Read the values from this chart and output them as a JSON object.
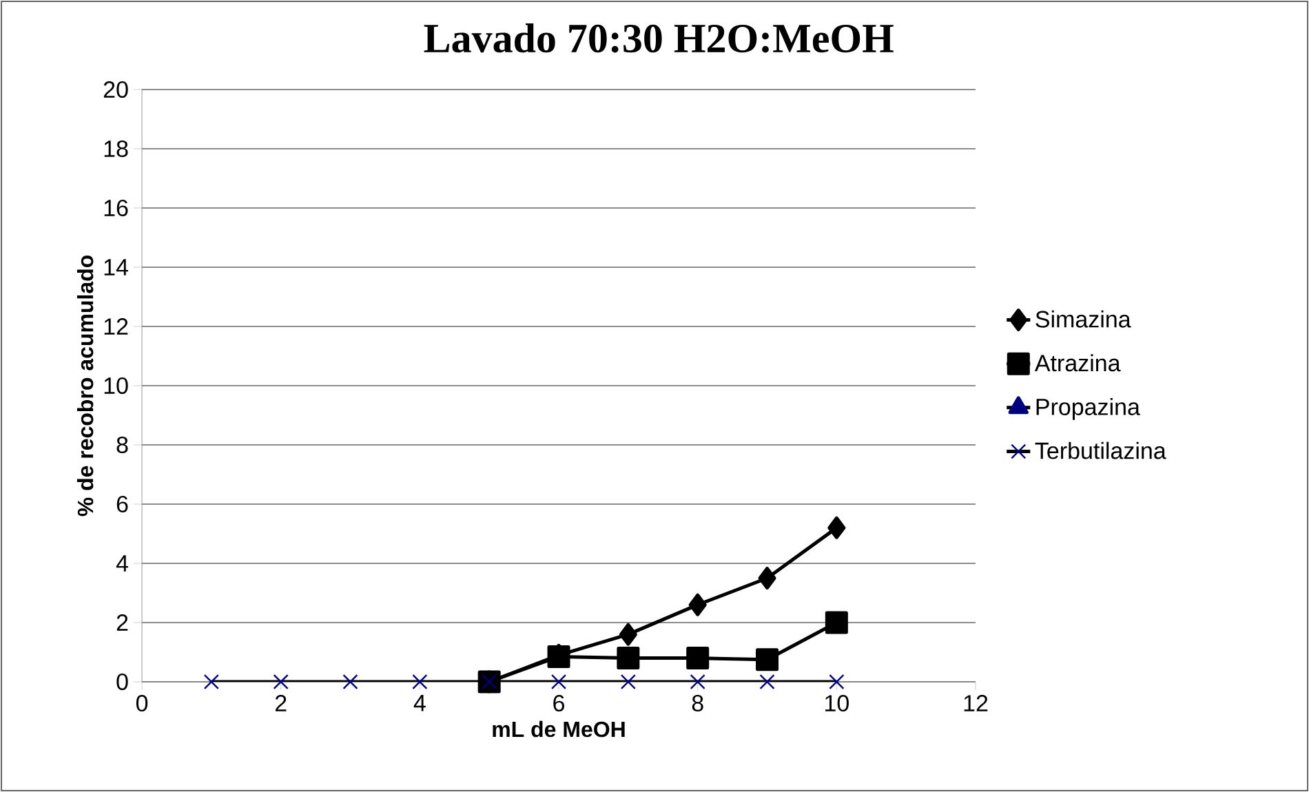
{
  "chart_data": {
    "type": "line",
    "title": "Lavado 70:30 H2O:MeOH",
    "xlabel": "mL de MeOH",
    "ylabel": "% de recobro acumulado",
    "x": [
      1,
      2,
      3,
      4,
      5,
      6,
      7,
      8,
      9,
      10
    ],
    "series": [
      {
        "name": "Simazina",
        "color": "#000000",
        "marker": "diamond",
        "values": [
          null,
          null,
          null,
          null,
          0,
          0.9,
          1.6,
          2.6,
          3.5,
          5.2
        ]
      },
      {
        "name": "Atrazina",
        "color": "#000000",
        "marker": "square",
        "values": [
          null,
          null,
          null,
          null,
          0,
          0.85,
          0.8,
          0.8,
          0.75,
          2.0
        ]
      },
      {
        "name": "Propazina",
        "color": "#000080",
        "marker": "triangle",
        "values": [
          null,
          null,
          null,
          null,
          null,
          null,
          null,
          null,
          null,
          null
        ]
      },
      {
        "name": "Terbutilazina",
        "color": "#000080",
        "marker": "cross",
        "values": [
          0,
          0,
          0,
          0,
          0,
          0,
          0,
          0,
          0,
          0
        ]
      }
    ],
    "xlim": [
      0,
      12
    ],
    "xticks": [
      0,
      2,
      4,
      6,
      8,
      10,
      12
    ],
    "ylim": [
      0,
      20
    ],
    "yticks": [
      0,
      2,
      4,
      6,
      8,
      10,
      12,
      14,
      16,
      18,
      20
    ],
    "grid": "y",
    "legend": "right"
  }
}
